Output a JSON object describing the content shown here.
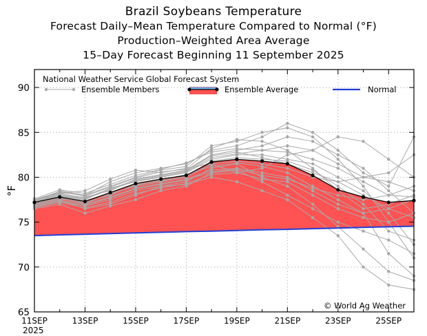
{
  "chart_data": {
    "type": "line",
    "title": "Brazil Soybeans Temperature",
    "subtitles": [
      "Forecast Daily–Mean Temperature Compared to Normal (°F)",
      "Production–Weighted Area Average",
      "15–Day Forecast Beginning 11 September 2025"
    ],
    "source_label": "National Weather Service Global Forecast System",
    "ylabel": "°F",
    "xlabel": "",
    "ylim": [
      65,
      92
    ],
    "yticks": [
      65,
      70,
      75,
      80,
      85,
      90
    ],
    "xlim": [
      0,
      15
    ],
    "xticks": [
      {
        "x": 0,
        "label": "11SEP",
        "sub": "2025"
      },
      {
        "x": 2,
        "label": "13SEP",
        "sub": ""
      },
      {
        "x": 4,
        "label": "15SEP",
        "sub": ""
      },
      {
        "x": 6,
        "label": "17SEP",
        "sub": ""
      },
      {
        "x": 8,
        "label": "19SEP",
        "sub": ""
      },
      {
        "x": 10,
        "label": "21SEP",
        "sub": ""
      },
      {
        "x": 12,
        "label": "23SEP",
        "sub": ""
      },
      {
        "x": 14,
        "label": "25SEP",
        "sub": ""
      }
    ],
    "grid": true,
    "legend": [
      {
        "name": "Ensemble Members",
        "color": "#a8a8a8"
      },
      {
        "name": "Ensemble Average",
        "color": "#ff4444"
      },
      {
        "name": "Normal",
        "color": "#1f3fd6"
      }
    ],
    "legend_position": "top",
    "copyright": "© World Ag Weather",
    "x": [
      0,
      1,
      2,
      3,
      4,
      5,
      6,
      7,
      8,
      9,
      10,
      11,
      12,
      13,
      14,
      15
    ],
    "ensemble_average": [
      77.2,
      77.8,
      77.3,
      78.3,
      79.3,
      79.8,
      80.2,
      81.7,
      82.0,
      81.8,
      81.5,
      80.2,
      78.6,
      77.8,
      77.2,
      77.4
    ],
    "normal": [
      73.5,
      73.58,
      73.65,
      73.72,
      73.8,
      73.87,
      73.94,
      74.0,
      74.07,
      74.14,
      74.2,
      74.27,
      74.34,
      74.41,
      74.48,
      74.55
    ],
    "ensemble_members": [
      [
        77.0,
        78.5,
        78.0,
        79.5,
        80.5,
        81.0,
        81.5,
        83.0,
        83.5,
        84.5,
        86.0,
        85.0,
        83.0,
        80.5,
        79.0,
        84.5
      ],
      [
        76.8,
        77.5,
        76.5,
        77.0,
        78.0,
        79.0,
        79.5,
        81.0,
        81.5,
        80.0,
        79.0,
        77.0,
        74.5,
        72.0,
        69.5,
        68.5
      ],
      [
        77.3,
        78.0,
        77.5,
        78.8,
        79.5,
        80.0,
        80.5,
        82.0,
        82.5,
        82.5,
        82.0,
        81.5,
        80.0,
        78.5,
        76.0,
        72.5
      ],
      [
        77.5,
        78.2,
        78.5,
        79.8,
        80.8,
        80.5,
        81.0,
        81.5,
        80.5,
        81.0,
        82.5,
        83.0,
        84.5,
        84.0,
        82.0,
        80.0
      ],
      [
        76.5,
        77.0,
        76.0,
        76.8,
        77.5,
        78.5,
        79.0,
        80.5,
        80.8,
        79.5,
        78.0,
        76.5,
        75.0,
        74.0,
        73.0,
        71.5
      ],
      [
        77.1,
        77.8,
        77.8,
        78.5,
        79.8,
        80.3,
        80.8,
        82.5,
        83.0,
        83.5,
        84.5,
        84.0,
        82.5,
        81.0,
        78.5,
        76.0
      ],
      [
        76.9,
        77.6,
        77.0,
        77.8,
        78.8,
        79.3,
        79.8,
        80.8,
        81.0,
        80.5,
        80.0,
        78.5,
        77.0,
        76.0,
        76.5,
        77.5
      ],
      [
        77.4,
        78.3,
        78.0,
        79.0,
        80.0,
        80.8,
        81.2,
        83.5,
        84.0,
        85.0,
        85.5,
        84.5,
        82.0,
        79.0,
        75.0,
        71.0
      ],
      [
        77.2,
        77.9,
        77.4,
        78.2,
        79.0,
        79.5,
        80.0,
        81.5,
        81.8,
        81.5,
        81.0,
        80.0,
        79.5,
        80.0,
        80.5,
        82.5
      ],
      [
        76.7,
        77.3,
        76.8,
        77.5,
        78.5,
        79.0,
        79.2,
        80.0,
        79.5,
        78.5,
        77.5,
        75.5,
        73.5,
        70.0,
        68.0,
        67.5
      ],
      [
        77.6,
        78.6,
        78.2,
        79.2,
        80.2,
        80.9,
        81.6,
        82.8,
        83.2,
        83.0,
        82.8,
        82.0,
        81.0,
        79.5,
        78.0,
        79.0
      ],
      [
        77.0,
        77.7,
        77.2,
        78.0,
        79.2,
        79.6,
        80.1,
        81.8,
        82.2,
        82.0,
        81.8,
        80.8,
        79.0,
        77.0,
        74.0,
        73.0
      ],
      [
        77.3,
        78.1,
        77.6,
        78.6,
        79.6,
        80.1,
        80.6,
        82.2,
        82.6,
        83.0,
        83.5,
        83.0,
        81.5,
        80.0,
        79.5,
        78.5
      ],
      [
        76.6,
        77.2,
        76.6,
        77.2,
        78.2,
        78.8,
        79.3,
        80.3,
        80.5,
        79.8,
        79.5,
        78.0,
        76.5,
        75.5,
        75.0,
        76.0
      ],
      [
        77.5,
        78.4,
        77.9,
        78.9,
        79.9,
        80.6,
        80.9,
        83.2,
        84.2,
        84.0,
        83.0,
        81.0,
        78.5,
        76.5,
        77.0,
        78.0
      ],
      [
        77.1,
        77.8,
        77.1,
        78.1,
        79.1,
        79.7,
        80.3,
        81.2,
        81.6,
        81.2,
        80.5,
        79.0,
        77.5,
        76.0,
        71.5,
        69.0
      ],
      [
        76.8,
        77.4,
        76.9,
        77.7,
        78.7,
        79.2,
        79.7,
        80.6,
        80.9,
        80.2,
        79.8,
        78.8,
        78.0,
        77.5,
        78.0,
        77.8
      ],
      [
        77.4,
        78.2,
        77.7,
        78.7,
        79.7,
        80.2,
        80.7,
        82.4,
        82.8,
        82.2,
        81.5,
        80.5,
        79.5,
        78.0,
        76.5,
        75.5
      ]
    ]
  }
}
